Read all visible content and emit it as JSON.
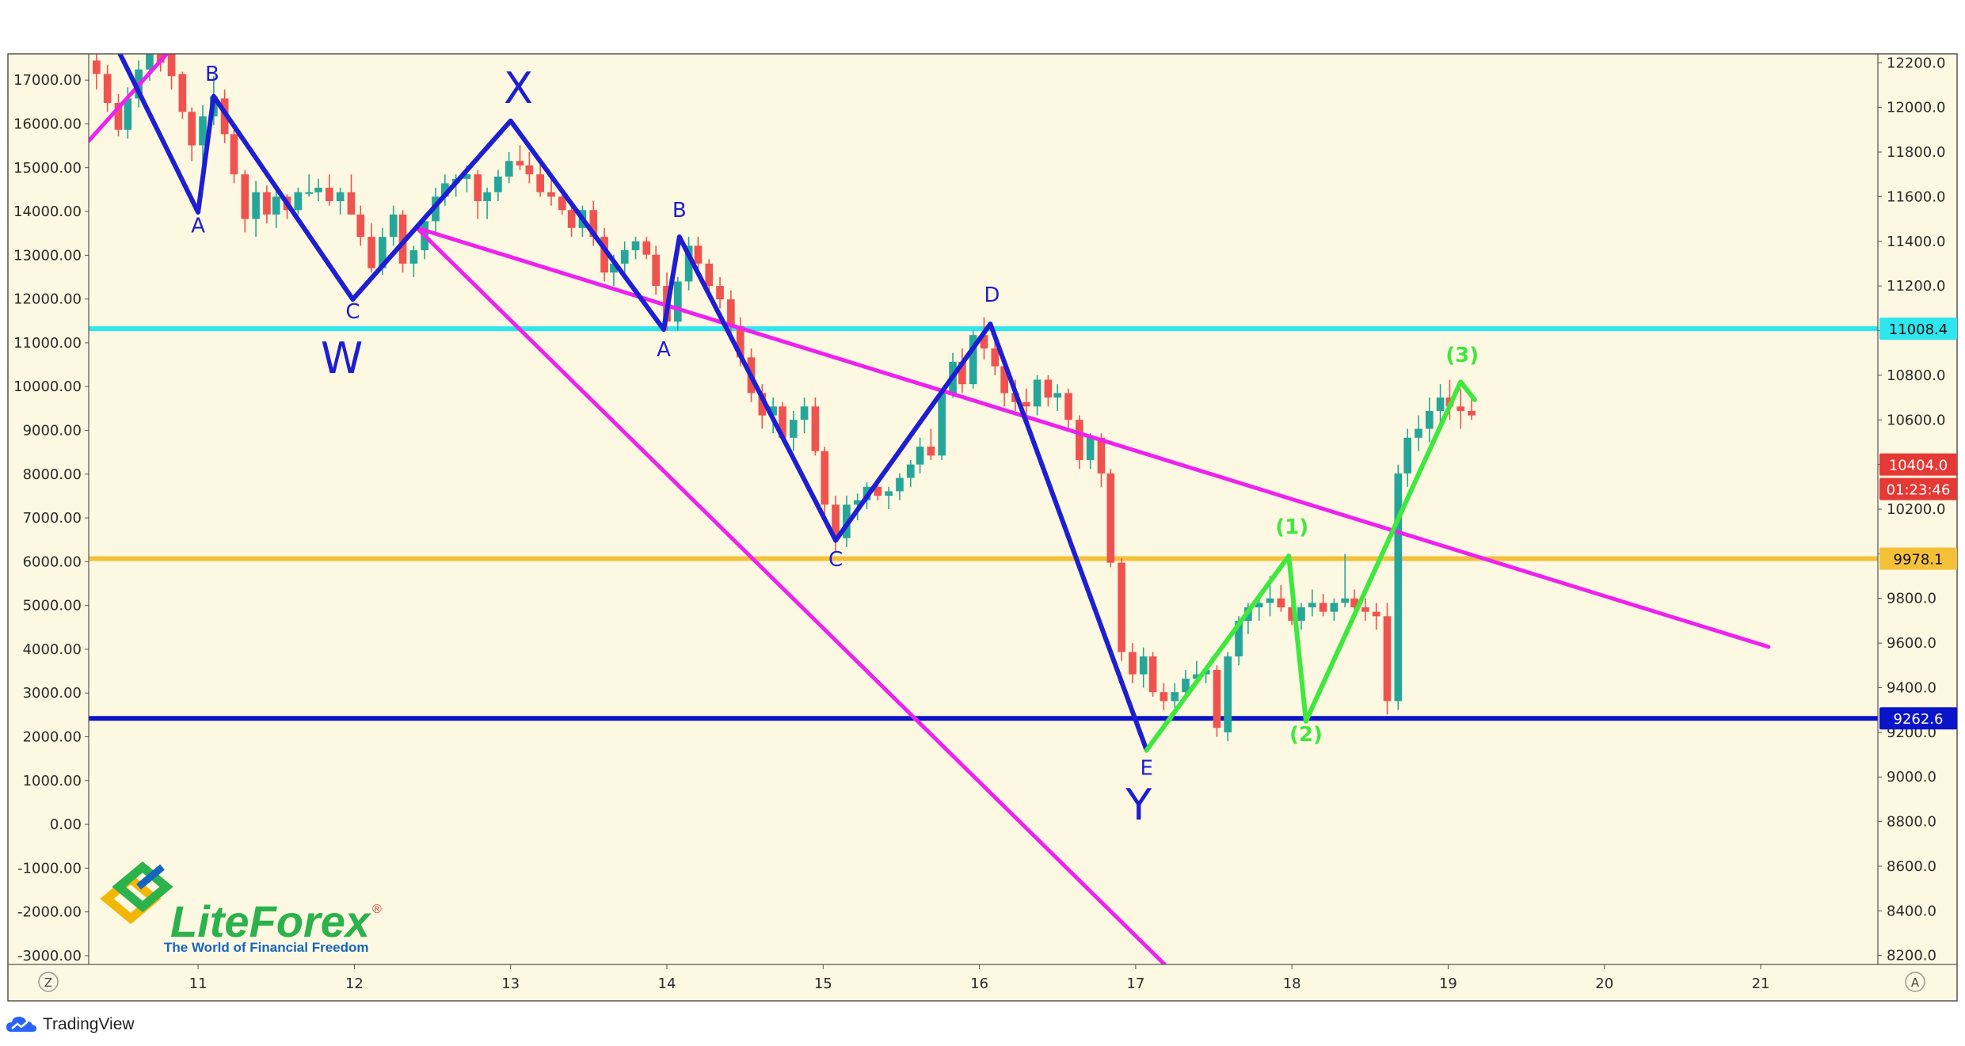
{
  "branding": {
    "logo_name": "LiteForex",
    "logo_trademark": "®",
    "logo_tagline": "The World of Financial Freedom",
    "platform": "TradingView"
  },
  "colors": {
    "background": "#fdf8e1",
    "bull": "#26a69a",
    "bear": "#ef5350",
    "wave_blue": "#1e1ed2",
    "wave_green": "#3ee83e",
    "trend_magenta": "#ee22ee",
    "support_navy": "#0a14c8",
    "resistance_cyan": "#2ee6ee",
    "level_gold": "#f4c038",
    "price_red": "#e53935"
  },
  "axis_buttons": {
    "left": "Z",
    "right": "A"
  },
  "chart_data": {
    "type": "candlestick",
    "x_axis": {
      "ticks": [
        "11",
        "12",
        "13",
        "14",
        "15",
        "16",
        "17",
        "18",
        "19",
        "20",
        "21"
      ],
      "range": [
        10.3,
        21.75
      ]
    },
    "left_axis": {
      "ticks": [
        "17000.00",
        "16000.00",
        "15000.00",
        "14000.00",
        "13000.00",
        "12000.00",
        "11000.00",
        "10000.00",
        "9000.00",
        "8000.00",
        "7000.00",
        "6000.00",
        "5000.00",
        "4000.00",
        "3000.00",
        "2000.00",
        "1000.00",
        "0.00",
        "-1000.00",
        "-2000.00",
        "-3000.00"
      ],
      "range": [
        -3200,
        17600
      ]
    },
    "right_axis": {
      "ticks": [
        "12200.0",
        "12000.0",
        "11800.0",
        "11600.0",
        "11400.0",
        "11200.0",
        "11000.0",
        "10800.0",
        "10600.0",
        "10400.0",
        "10200.0",
        "10000.0",
        "9800.0",
        "9600.0",
        "9400.0",
        "9200.0",
        "9000.0",
        "8800.0",
        "8600.0",
        "8400.0",
        "8200.0"
      ],
      "range": [
        8160,
        12240
      ]
    },
    "horizontal_levels": [
      {
        "price": 11008.4,
        "label": "11008.4",
        "color": "#2ee6ee"
      },
      {
        "price": 9978.1,
        "label": "9978.1",
        "color": "#f4c038"
      },
      {
        "price": 9262.6,
        "label": "9262.6",
        "color": "#0a14c8"
      }
    ],
    "price_tags": [
      {
        "label": "10404.0",
        "price": 10400,
        "color": "#e53935"
      },
      {
        "label": "01:23:46",
        "price": 10290,
        "color": "#e53935"
      }
    ],
    "candles": [
      [
        10.35,
        12210,
        12310,
        12080,
        12150
      ],
      [
        10.42,
        12150,
        12190,
        11980,
        12020
      ],
      [
        10.49,
        12020,
        12060,
        11870,
        11900
      ],
      [
        10.55,
        11900,
        12090,
        11860,
        12040
      ],
      [
        10.62,
        12040,
        12210,
        12000,
        12170
      ],
      [
        10.69,
        12170,
        12290,
        12120,
        12260
      ],
      [
        10.76,
        12260,
        12290,
        12160,
        12200
      ],
      [
        10.83,
        12240,
        12280,
        12080,
        12140
      ],
      [
        10.9,
        12150,
        12160,
        11950,
        11980
      ],
      [
        10.96,
        11980,
        12000,
        11760,
        11830
      ],
      [
        11.03,
        11830,
        12010,
        11720,
        11960
      ],
      [
        11.1,
        11960,
        12140,
        11920,
        12050
      ],
      [
        11.17,
        12040,
        12080,
        11840,
        11880
      ],
      [
        11.23,
        11880,
        11900,
        11660,
        11700
      ],
      [
        11.3,
        11700,
        11720,
        11440,
        11500
      ],
      [
        11.37,
        11500,
        11670,
        11420,
        11620
      ],
      [
        11.44,
        11620,
        11650,
        11480,
        11520
      ],
      [
        11.5,
        11520,
        11630,
        11460,
        11600
      ],
      [
        11.57,
        11600,
        11610,
        11500,
        11540
      ],
      [
        11.64,
        11540,
        11640,
        11520,
        11620
      ],
      [
        11.71,
        11620,
        11700,
        11600,
        11620
      ],
      [
        11.77,
        11620,
        11680,
        11580,
        11640
      ],
      [
        11.84,
        11640,
        11700,
        11560,
        11580
      ],
      [
        11.91,
        11580,
        11640,
        11520,
        11620
      ],
      [
        11.98,
        11620,
        11700,
        11520,
        11520
      ],
      [
        12.04,
        11520,
        11560,
        11380,
        11420
      ],
      [
        12.11,
        11420,
        11480,
        11260,
        11280
      ],
      [
        12.18,
        11280,
        11460,
        11250,
        11420
      ],
      [
        12.25,
        11420,
        11560,
        11380,
        11520
      ],
      [
        12.31,
        11520,
        11540,
        11260,
        11300
      ],
      [
        12.38,
        11300,
        11380,
        11240,
        11360
      ],
      [
        12.45,
        11360,
        11520,
        11320,
        11490
      ],
      [
        12.52,
        11490,
        11640,
        11440,
        11600
      ],
      [
        12.58,
        11600,
        11700,
        11560,
        11660
      ],
      [
        12.65,
        11660,
        11700,
        11600,
        11680
      ],
      [
        12.72,
        11680,
        11740,
        11620,
        11700
      ],
      [
        12.79,
        11700,
        11720,
        11500,
        11580
      ],
      [
        12.85,
        11580,
        11640,
        11500,
        11620
      ],
      [
        12.92,
        11620,
        11720,
        11580,
        11690
      ],
      [
        12.99,
        11690,
        11800,
        11660,
        11760
      ],
      [
        13.06,
        11760,
        11830,
        11720,
        11740
      ],
      [
        13.12,
        11740,
        11800,
        11660,
        11700
      ],
      [
        13.19,
        11700,
        11760,
        11600,
        11620
      ],
      [
        13.26,
        11620,
        11680,
        11560,
        11600
      ],
      [
        13.33,
        11600,
        11640,
        11520,
        11540
      ],
      [
        13.39,
        11540,
        11560,
        11420,
        11460
      ],
      [
        13.46,
        11460,
        11560,
        11420,
        11540
      ],
      [
        13.53,
        11540,
        11580,
        11380,
        11420
      ],
      [
        13.6,
        11420,
        11460,
        11220,
        11260
      ],
      [
        13.66,
        11260,
        11340,
        11200,
        11300
      ],
      [
        13.73,
        11300,
        11400,
        11260,
        11360
      ],
      [
        13.8,
        11360,
        11420,
        11320,
        11400
      ],
      [
        13.87,
        11400,
        11420,
        11320,
        11340
      ],
      [
        13.93,
        11340,
        11380,
        11160,
        11200
      ],
      [
        14.0,
        11200,
        11260,
        11000,
        11040
      ],
      [
        14.07,
        11040,
        11240,
        11000,
        11220
      ],
      [
        14.14,
        11220,
        11420,
        11180,
        11380
      ],
      [
        14.2,
        11380,
        11420,
        11260,
        11300
      ],
      [
        14.27,
        11300,
        11320,
        11160,
        11200
      ],
      [
        14.34,
        11200,
        11240,
        11100,
        11140
      ],
      [
        14.41,
        11140,
        11180,
        10980,
        11020
      ],
      [
        14.47,
        11020,
        11060,
        10840,
        10880
      ],
      [
        14.54,
        10880,
        10920,
        10680,
        10720
      ],
      [
        14.61,
        10720,
        10760,
        10560,
        10620
      ],
      [
        14.68,
        10620,
        10700,
        10540,
        10660
      ],
      [
        14.74,
        10660,
        10680,
        10500,
        10520
      ],
      [
        14.81,
        10520,
        10640,
        10460,
        10600
      ],
      [
        14.88,
        10600,
        10700,
        10540,
        10660
      ],
      [
        14.95,
        10660,
        10700,
        10440,
        10460
      ],
      [
        15.01,
        10460,
        10480,
        10160,
        10220
      ],
      [
        15.08,
        10220,
        10260,
        10010,
        10070
      ],
      [
        15.15,
        10070,
        10260,
        10030,
        10220
      ],
      [
        15.22,
        10220,
        10270,
        10150,
        10240
      ],
      [
        15.28,
        10240,
        10320,
        10200,
        10300
      ],
      [
        15.35,
        10300,
        10340,
        10240,
        10260
      ],
      [
        15.42,
        10260,
        10300,
        10200,
        10280
      ],
      [
        15.49,
        10280,
        10360,
        10240,
        10340
      ],
      [
        15.56,
        10340,
        10420,
        10300,
        10400
      ],
      [
        15.62,
        10400,
        10520,
        10360,
        10480
      ],
      [
        15.69,
        10480,
        10560,
        10420,
        10440
      ],
      [
        15.76,
        10440,
        10740,
        10420,
        10720
      ],
      [
        15.83,
        10720,
        10900,
        10700,
        10860
      ],
      [
        15.89,
        10860,
        10920,
        10720,
        10760
      ],
      [
        15.96,
        10760,
        11000,
        10740,
        10980
      ],
      [
        16.03,
        10980,
        11060,
        10870,
        10920
      ],
      [
        16.1,
        10920,
        10960,
        10800,
        10840
      ],
      [
        16.16,
        10840,
        10860,
        10660,
        10720
      ],
      [
        16.23,
        10720,
        10780,
        10640,
        10680
      ],
      [
        16.3,
        10680,
        10740,
        10600,
        10660
      ],
      [
        16.37,
        10660,
        10800,
        10620,
        10780
      ],
      [
        16.44,
        10780,
        10800,
        10660,
        10700
      ],
      [
        16.5,
        10700,
        10760,
        10640,
        10720
      ],
      [
        16.57,
        10720,
        10740,
        10560,
        10600
      ],
      [
        16.64,
        10600,
        10620,
        10380,
        10420
      ],
      [
        16.71,
        10420,
        10540,
        10380,
        10520
      ],
      [
        16.78,
        10520,
        10540,
        10300,
        10360
      ],
      [
        16.84,
        10360,
        10380,
        9940,
        9960
      ],
      [
        16.91,
        9960,
        9980,
        9520,
        9560
      ],
      [
        16.98,
        9560,
        9600,
        9420,
        9460
      ],
      [
        17.05,
        9460,
        9580,
        9400,
        9540
      ],
      [
        17.11,
        9540,
        9560,
        9360,
        9380
      ],
      [
        17.18,
        9380,
        9420,
        9300,
        9340
      ],
      [
        17.25,
        9340,
        9420,
        9310,
        9380
      ],
      [
        17.32,
        9380,
        9480,
        9350,
        9440
      ],
      [
        17.39,
        9440,
        9520,
        9420,
        9460
      ],
      [
        17.45,
        9460,
        9500,
        9420,
        9480
      ],
      [
        17.52,
        9480,
        9500,
        9180,
        9220
      ],
      [
        17.59,
        9200,
        9560,
        9160,
        9540
      ],
      [
        17.66,
        9540,
        9720,
        9500,
        9700
      ],
      [
        17.72,
        9700,
        9780,
        9640,
        9760
      ],
      [
        17.79,
        9760,
        9820,
        9700,
        9780
      ],
      [
        17.86,
        9780,
        9900,
        9720,
        9800
      ],
      [
        17.93,
        9800,
        9860,
        9740,
        9760
      ],
      [
        18.0,
        9760,
        9800,
        9680,
        9700
      ],
      [
        18.06,
        9700,
        9780,
        9660,
        9760
      ],
      [
        18.13,
        9760,
        9840,
        9720,
        9780
      ],
      [
        18.2,
        9780,
        9820,
        9720,
        9740
      ],
      [
        18.27,
        9740,
        9800,
        9700,
        9780
      ],
      [
        18.34,
        9780,
        10000,
        9760,
        9800
      ],
      [
        18.4,
        9800,
        9840,
        9740,
        9760
      ],
      [
        18.47,
        9760,
        9800,
        9700,
        9740
      ],
      [
        18.54,
        9740,
        9780,
        9660,
        9720
      ],
      [
        18.61,
        9720,
        9780,
        9280,
        9340
      ],
      [
        18.68,
        9340,
        10400,
        9300,
        10360
      ],
      [
        18.74,
        10360,
        10560,
        10300,
        10520
      ],
      [
        18.81,
        10520,
        10620,
        10460,
        10560
      ],
      [
        18.88,
        10560,
        10700,
        10500,
        10640
      ],
      [
        18.95,
        10640,
        10760,
        10580,
        10700
      ],
      [
        19.01,
        10700,
        10780,
        10600,
        10660
      ],
      [
        19.08,
        10660,
        10740,
        10560,
        10640
      ],
      [
        19.15,
        10640,
        10720,
        10600,
        10620
      ]
    ],
    "trendlines": [
      {
        "name": "upper-wedge-line",
        "points": [
          [
            12.4,
            11460
          ],
          [
            21.05,
            9583
          ]
        ],
        "color": "#ee22ee",
        "width": 5
      },
      {
        "name": "lower-channel-line",
        "points": [
          [
            12.4,
            11460
          ],
          [
            17.2,
            8150
          ]
        ],
        "color": "#ee22ee",
        "width": 5
      },
      {
        "name": "entry-trend-line",
        "points": [
          [
            10.3,
            11850
          ],
          [
            10.8,
            12240
          ]
        ],
        "color": "#ee22ee",
        "width": 5
      }
    ],
    "wave_lines": [
      {
        "name": "wave-w",
        "color": "#1e1ed2",
        "points": [
          [
            10.5,
            12240
          ],
          [
            11.0,
            11530
          ],
          [
            11.1,
            12050
          ],
          [
            11.99,
            11140
          ],
          [
            13.0,
            11940
          ],
          [
            13.98,
            11005
          ],
          [
            14.08,
            11420
          ],
          [
            15.08,
            10060
          ],
          [
            16.07,
            11030
          ],
          [
            17.07,
            9120
          ]
        ]
      },
      {
        "name": "wave-impulse",
        "color": "#3ee83e",
        "points": [
          [
            17.07,
            9120
          ],
          [
            17.98,
            9990
          ],
          [
            18.09,
            9250
          ],
          [
            19.08,
            10770
          ],
          [
            19.17,
            10690
          ]
        ]
      }
    ],
    "wave_labels": [
      {
        "text": "B",
        "x": 11.09,
        "price": 12120,
        "kind": "small",
        "color": "#1e1ed2"
      },
      {
        "text": "A",
        "x": 11.0,
        "price": 11440,
        "kind": "small",
        "color": "#1e1ed2"
      },
      {
        "text": "C",
        "x": 11.99,
        "price": 11055,
        "kind": "small",
        "color": "#1e1ed2"
      },
      {
        "text": "W",
        "x": 11.92,
        "price": 10810,
        "kind": "big",
        "color": "#1e1ed2"
      },
      {
        "text": "X",
        "x": 13.05,
        "price": 12020,
        "kind": "big",
        "color": "#1e1ed2"
      },
      {
        "text": "B",
        "x": 14.08,
        "price": 11510,
        "kind": "small",
        "color": "#1e1ed2"
      },
      {
        "text": "A",
        "x": 13.98,
        "price": 10885,
        "kind": "small",
        "color": "#1e1ed2"
      },
      {
        "text": "C",
        "x": 15.08,
        "price": 9945,
        "kind": "small",
        "color": "#1e1ed2"
      },
      {
        "text": "D",
        "x": 16.08,
        "price": 11130,
        "kind": "small",
        "color": "#1e1ed2"
      },
      {
        "text": "E",
        "x": 17.07,
        "price": 9010,
        "kind": "small",
        "color": "#1e1ed2"
      },
      {
        "text": "Y",
        "x": 17.02,
        "price": 8810,
        "kind": "big",
        "color": "#1e1ed2"
      },
      {
        "text": "(1)",
        "x": 18.0,
        "price": 10090,
        "kind": "green",
        "color": "#3ee83e"
      },
      {
        "text": "(2)",
        "x": 18.09,
        "price": 9160,
        "kind": "green",
        "color": "#3ee83e"
      },
      {
        "text": "(3)",
        "x": 19.09,
        "price": 10860,
        "kind": "green",
        "color": "#3ee83e"
      }
    ]
  }
}
